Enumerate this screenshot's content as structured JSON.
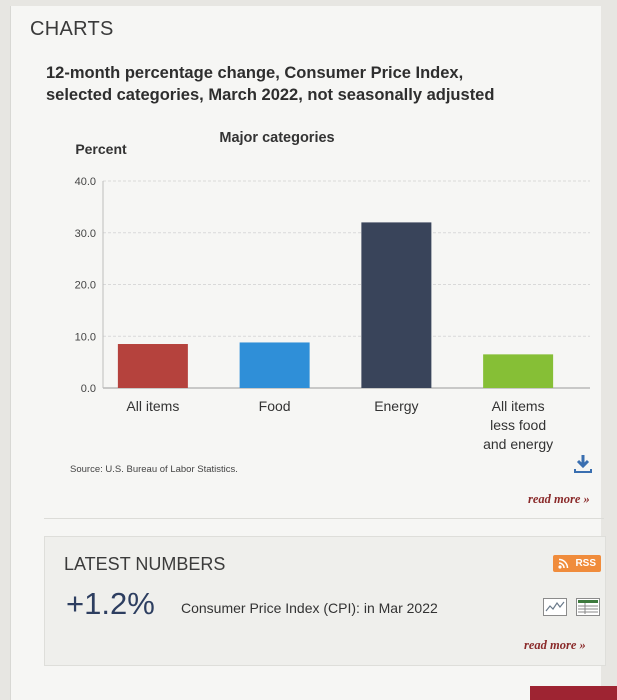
{
  "section_title": "CHARTS",
  "chart_data": {
    "type": "bar",
    "title": "12-month percentage change, Consumer Price Index, selected categories, March 2022, not seasonally adjusted",
    "subtitle": "Major categories",
    "ylabel": "Percent",
    "ylim": [
      0,
      40
    ],
    "yticks": [
      "40.0",
      "30.0",
      "20.0",
      "10.0",
      "0.0"
    ],
    "yticks_values": [
      40,
      30,
      20,
      10,
      0
    ],
    "categories": [
      "All items",
      "Food",
      "Energy",
      "All items less food and energy"
    ],
    "values": [
      8.5,
      8.8,
      32.0,
      6.5
    ],
    "colors": [
      "#b5423d",
      "#2f8fd8",
      "#39445a",
      "#86bf36"
    ],
    "grid": true
  },
  "chart_texts": {
    "title_line1": "12-month percentage change, Consumer Price Index,",
    "title_line2": "selected categories, March 2022, not seasonally adjusted",
    "cat_lines": [
      [
        "All items"
      ],
      [
        "Food"
      ],
      [
        "Energy"
      ],
      [
        "All items",
        "less food",
        "and energy"
      ]
    ]
  },
  "source_text": "Source: U.S. Bureau of Labor Statistics.",
  "read_more_label": "read more »",
  "latest": {
    "title": "LATEST NUMBERS",
    "rss_label": "RSS",
    "value": "+1.2%",
    "metric": "Consumer Price Index (CPI):",
    "period": "in Mar 2022",
    "read_more_label": "read more »"
  },
  "icons": {
    "download": "download-icon",
    "rss": "rss-icon",
    "line_chart": "line-chart-icon",
    "table": "table-icon"
  }
}
